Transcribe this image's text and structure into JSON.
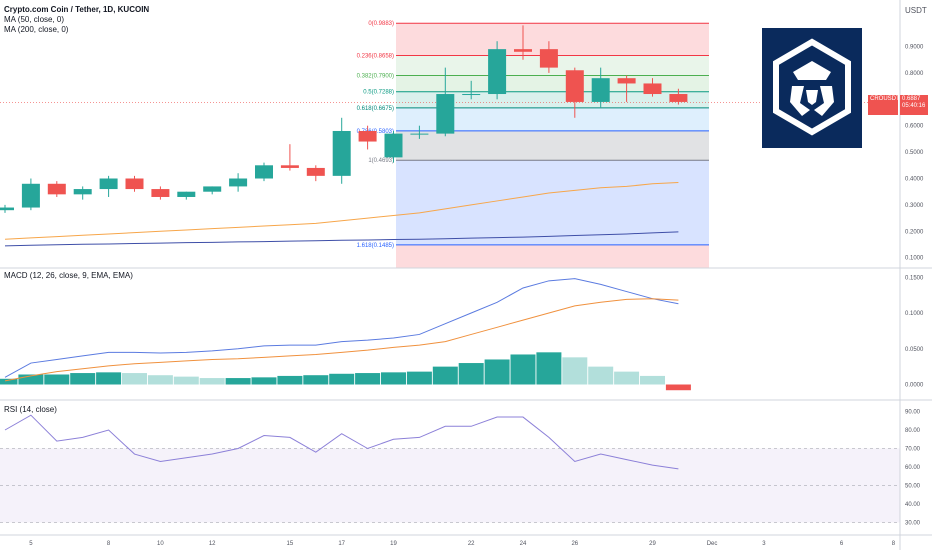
{
  "header": {
    "title": "Crypto.com Coin / Tether, 1D, KUCOIN",
    "ma50": "MA (50, close, 0)",
    "ma200": "MA (200, close, 0)"
  },
  "price_axis": {
    "currency": "USDT",
    "ticks": [
      "0.9000",
      "0.8000",
      "0.7000",
      "0.6000",
      "0.5000",
      "0.4000",
      "0.3000",
      "0.2000",
      "0.1000"
    ],
    "ticks_values": [
      0.9,
      0.8,
      0.7,
      0.6,
      0.5,
      0.4,
      0.3,
      0.2,
      0.1
    ],
    "last_label": "CROUSDT",
    "last_price": "0.6887",
    "countdown": "05:40:16"
  },
  "fib": {
    "levels": [
      {
        "label": "0(0.9883)",
        "value": 0.9883
      },
      {
        "label": "0.236(0.8658)",
        "value": 0.8658
      },
      {
        "label": "0.382(0.7900)",
        "value": 0.79
      },
      {
        "label": "0.5(0.7288)",
        "value": 0.7288
      },
      {
        "label": "0.618(0.6675)",
        "value": 0.6675
      },
      {
        "label": "0.786(0.5803)",
        "value": 0.5803
      },
      {
        "label": "1(0.4693)",
        "value": 0.4693
      },
      {
        "label": "1.618(0.1485)",
        "value": 0.1485
      }
    ],
    "colors": [
      "#f23645",
      "#f23645",
      "#4caf50",
      "#089981",
      "#00897b",
      "#2962ff",
      "#787b86",
      "#2962ff"
    ]
  },
  "candles": [
    {
      "o": 0.28,
      "h": 0.3,
      "l": 0.27,
      "c": 0.29
    },
    {
      "o": 0.29,
      "h": 0.4,
      "l": 0.28,
      "c": 0.38
    },
    {
      "o": 0.38,
      "h": 0.39,
      "l": 0.33,
      "c": 0.34
    },
    {
      "o": 0.34,
      "h": 0.37,
      "l": 0.32,
      "c": 0.36
    },
    {
      "o": 0.36,
      "h": 0.41,
      "l": 0.33,
      "c": 0.4
    },
    {
      "o": 0.4,
      "h": 0.41,
      "l": 0.35,
      "c": 0.36
    },
    {
      "o": 0.36,
      "h": 0.37,
      "l": 0.32,
      "c": 0.33
    },
    {
      "o": 0.33,
      "h": 0.35,
      "l": 0.32,
      "c": 0.35
    },
    {
      "o": 0.35,
      "h": 0.37,
      "l": 0.34,
      "c": 0.37
    },
    {
      "o": 0.37,
      "h": 0.42,
      "l": 0.35,
      "c": 0.4
    },
    {
      "o": 0.4,
      "h": 0.46,
      "l": 0.39,
      "c": 0.45
    },
    {
      "o": 0.45,
      "h": 0.53,
      "l": 0.43,
      "c": 0.44
    },
    {
      "o": 0.44,
      "h": 0.45,
      "l": 0.39,
      "c": 0.41
    },
    {
      "o": 0.41,
      "h": 0.63,
      "l": 0.38,
      "c": 0.58
    },
    {
      "o": 0.58,
      "h": 0.6,
      "l": 0.51,
      "c": 0.54
    },
    {
      "o": 0.48,
      "h": 0.58,
      "l": 0.46,
      "c": 0.57
    },
    {
      "o": 0.57,
      "h": 0.6,
      "l": 0.55,
      "c": 0.57
    },
    {
      "o": 0.57,
      "h": 0.82,
      "l": 0.56,
      "c": 0.72
    },
    {
      "o": 0.72,
      "h": 0.77,
      "l": 0.7,
      "c": 0.72
    },
    {
      "o": 0.72,
      "h": 0.92,
      "l": 0.7,
      "c": 0.89
    },
    {
      "o": 0.89,
      "h": 0.98,
      "l": 0.85,
      "c": 0.88
    },
    {
      "o": 0.89,
      "h": 0.92,
      "l": 0.8,
      "c": 0.82
    },
    {
      "o": 0.81,
      "h": 0.82,
      "l": 0.63,
      "c": 0.69
    },
    {
      "o": 0.69,
      "h": 0.82,
      "l": 0.67,
      "c": 0.78
    },
    {
      "o": 0.78,
      "h": 0.79,
      "l": 0.69,
      "c": 0.76
    },
    {
      "o": 0.76,
      "h": 0.78,
      "l": 0.71,
      "c": 0.72
    },
    {
      "o": 0.72,
      "h": 0.74,
      "l": 0.68,
      "c": 0.69
    }
  ],
  "ma50_values": [
    0.17,
    0.175,
    0.18,
    0.185,
    0.19,
    0.195,
    0.2,
    0.205,
    0.21,
    0.215,
    0.22,
    0.225,
    0.23,
    0.24,
    0.25,
    0.26,
    0.27,
    0.285,
    0.3,
    0.315,
    0.33,
    0.345,
    0.355,
    0.365,
    0.37,
    0.38,
    0.385
  ],
  "ma200_values": [
    0.145,
    0.147,
    0.149,
    0.151,
    0.152,
    0.154,
    0.155,
    0.157,
    0.158,
    0.16,
    0.161,
    0.163,
    0.164,
    0.166,
    0.167,
    0.169,
    0.17,
    0.172,
    0.174,
    0.176,
    0.178,
    0.181,
    0.184,
    0.187,
    0.19,
    0.194,
    0.198
  ],
  "macd": {
    "label": "MACD (12, 26, close, 9, EMA, EMA)",
    "ticks": [
      "0.1500",
      "0.1000",
      "0.0500",
      "0.0000"
    ],
    "ticks_values": [
      0.15,
      0.1,
      0.05,
      0.0
    ],
    "macd_line": [
      0.01,
      0.03,
      0.035,
      0.04,
      0.045,
      0.045,
      0.044,
      0.045,
      0.047,
      0.05,
      0.054,
      0.055,
      0.055,
      0.06,
      0.062,
      0.065,
      0.07,
      0.085,
      0.1,
      0.115,
      0.135,
      0.145,
      0.148,
      0.14,
      0.13,
      0.12,
      0.113
    ],
    "signal_line": [
      0.005,
      0.012,
      0.018,
      0.022,
      0.026,
      0.029,
      0.031,
      0.033,
      0.035,
      0.036,
      0.038,
      0.04,
      0.042,
      0.045,
      0.048,
      0.052,
      0.055,
      0.06,
      0.07,
      0.08,
      0.09,
      0.1,
      0.11,
      0.115,
      0.119,
      0.12,
      0.118
    ],
    "histogram": [
      0.008,
      0.014,
      0.014,
      0.016,
      0.017,
      0.016,
      0.013,
      0.011,
      0.009,
      0.009,
      0.01,
      0.012,
      0.013,
      0.015,
      0.016,
      0.017,
      0.018,
      0.025,
      0.03,
      0.035,
      0.042,
      0.045,
      0.038,
      0.025,
      0.018,
      0.012,
      -0.008
    ]
  },
  "rsi": {
    "label": "RSI (14, close)",
    "ticks": [
      "90.00",
      "80.00",
      "70.00",
      "60.00",
      "50.00",
      "40.00",
      "30.00"
    ],
    "ticks_values": [
      90,
      80,
      70,
      60,
      50,
      40,
      30
    ],
    "values": [
      80,
      88,
      74,
      76,
      80,
      67,
      63,
      65,
      67,
      70,
      77,
      76,
      68,
      78,
      70,
      75,
      76,
      82,
      82,
      87,
      87,
      76,
      63,
      67,
      64,
      61,
      59
    ]
  },
  "time_axis": {
    "labels": [
      {
        "text": "5",
        "i": 1
      },
      {
        "text": "8",
        "i": 4
      },
      {
        "text": "10",
        "i": 6
      },
      {
        "text": "12",
        "i": 8
      },
      {
        "text": "15",
        "i": 11
      },
      {
        "text": "17",
        "i": 13
      },
      {
        "text": "19",
        "i": 15
      },
      {
        "text": "22",
        "i": 18
      },
      {
        "text": "24",
        "i": 20
      },
      {
        "text": "26",
        "i": 22
      },
      {
        "text": "29",
        "i": 25
      },
      {
        "text": "Dec",
        "i": 27.3
      },
      {
        "text": "3",
        "i": 29.3
      },
      {
        "text": "6",
        "i": 32.3
      },
      {
        "text": "8",
        "i": 34.3
      }
    ]
  },
  "colors": {
    "up": "#26a69a",
    "down": "#ef5350",
    "ma50": "#f7a64a",
    "ma200": "#3f4fa8",
    "macd": "#5b7be0",
    "signal": "#f0913e",
    "rsi": "#8c80d8",
    "axis_text": "#50535e",
    "grid": "#e0e3eb",
    "logo_bg": "#0a2a5c"
  }
}
